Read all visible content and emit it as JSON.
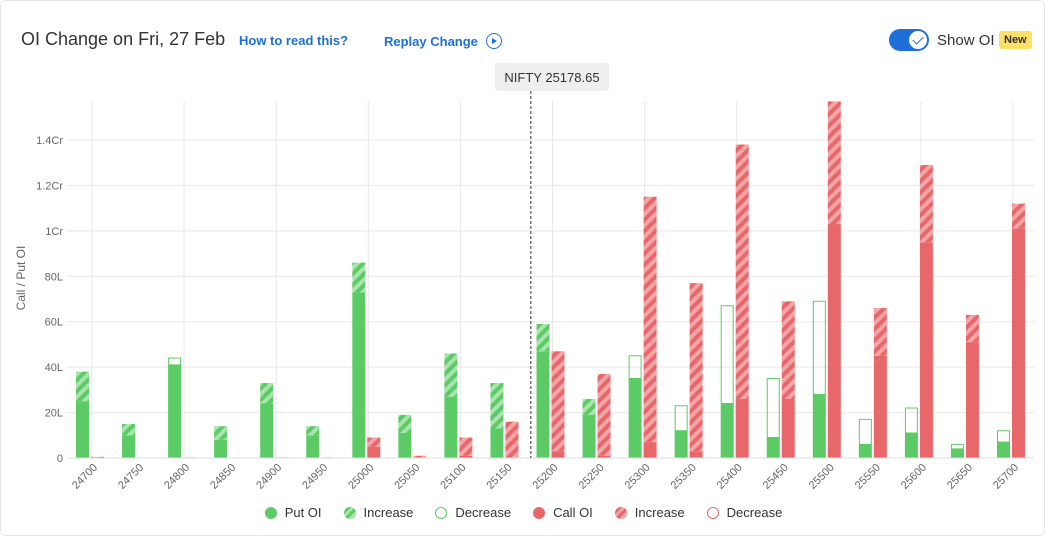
{
  "header": {
    "title": "OI Change on Fri, 27 Feb",
    "how_to_read": "How to read this?",
    "replay": "Replay Change",
    "show_oi_label": "Show OI",
    "new_badge": "New"
  },
  "spot": {
    "label": "NIFTY 25178.65",
    "value": 25178.65
  },
  "legend": {
    "put_oi": "Put OI",
    "put_increase": "Increase",
    "put_decrease": "Decrease",
    "call_oi": "Call OI",
    "call_increase": "Increase",
    "call_decrease": "Decrease"
  },
  "colors": {
    "put": "#5ccb65",
    "put_light": "#a9e3ad",
    "call": "#e8676a",
    "call_light": "#f3a5a7",
    "accent": "#1e6fd9",
    "grid": "#e8e8e8"
  },
  "chart_data": {
    "type": "bar",
    "ylabel": "Call / Put OI",
    "ylim": [
      0,
      1.57
    ],
    "yticks": [
      "0",
      "20L",
      "40L",
      "60L",
      "80L",
      "1Cr",
      "1.2Cr",
      "1.4Cr"
    ],
    "ytick_values": [
      0,
      0.2,
      0.4,
      0.6,
      0.8,
      1.0,
      1.2,
      1.4
    ],
    "unit": "Cr",
    "categories": [
      "24700",
      "24750",
      "24800",
      "24850",
      "24900",
      "24950",
      "25000",
      "25050",
      "25100",
      "25150",
      "25200",
      "25250",
      "25300",
      "25350",
      "25400",
      "25450",
      "25500",
      "25550",
      "25600",
      "25650",
      "25700"
    ],
    "series": [
      {
        "name": "Put OI",
        "current": [
          0.38,
          0.15,
          0.41,
          0.14,
          0.33,
          0.14,
          0.86,
          0.19,
          0.46,
          0.33,
          0.59,
          0.26,
          0.35,
          0.12,
          0.24,
          0.09,
          0.28,
          0.06,
          0.11,
          0.04,
          0.07
        ],
        "change": [
          0.13,
          0.05,
          -0.03,
          0.06,
          0.09,
          0.04,
          0.13,
          0.08,
          0.19,
          0.2,
          0.12,
          0.07,
          -0.1,
          -0.11,
          -0.43,
          -0.26,
          -0.41,
          -0.11,
          -0.11,
          -0.02,
          -0.05
        ]
      },
      {
        "name": "Call OI",
        "current": [
          0.005,
          0,
          0.003,
          0,
          0.003,
          0.003,
          0.09,
          0.01,
          0.09,
          0.16,
          0.47,
          0.37,
          1.15,
          0.77,
          1.38,
          0.69,
          1.57,
          0.66,
          1.29,
          0.63,
          1.12
        ],
        "change": [
          0.005,
          0,
          0.003,
          0,
          0.003,
          0.003,
          0.04,
          0.01,
          0.08,
          0.16,
          0.44,
          0.36,
          1.08,
          0.74,
          1.12,
          0.43,
          0.54,
          0.21,
          0.34,
          0.12,
          0.11
        ]
      }
    ]
  }
}
